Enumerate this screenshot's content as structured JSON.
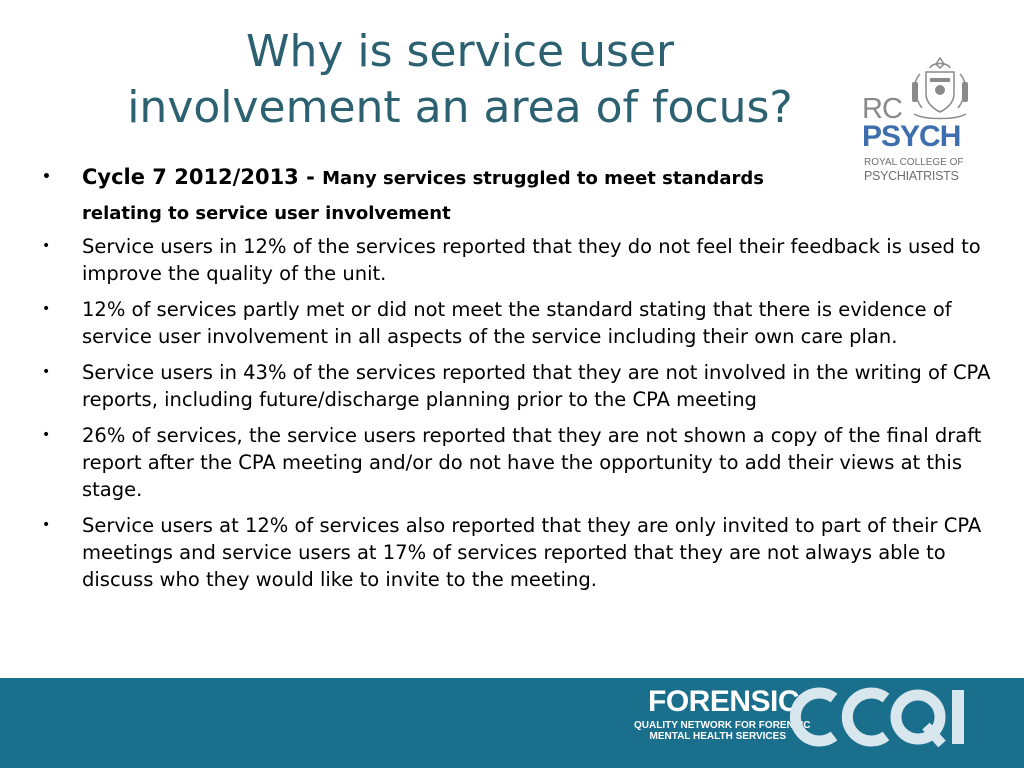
{
  "title": {
    "line1": "Why is service user",
    "line2": "involvement an area of focus?"
  },
  "logos": {
    "rcpsych": {
      "rc": "RC",
      "psych": "PSYCH",
      "line1": "ROYAL COLLEGE OF",
      "line2": "PSYCHIATRISTS"
    },
    "footer": {
      "forensic": "FORENSIC",
      "line1": "QUALITY NETWORK FOR FORENSIC",
      "line2": "MENTAL HEALTH SERVICES",
      "ccqi": "CCQI"
    }
  },
  "bullets": {
    "symbol": "•",
    "intro": {
      "cycle": "Cycle 7 2012/2013 - ",
      "text": "Many services struggled to meet standards relating to service user involvement"
    },
    "items": [
      "Service users in 12% of the services reported that they do not feel their feedback is used to improve the quality of the unit.",
      "12% of services partly met or did not meet the standard stating that there is evidence of service user involvement in all aspects of the service including their own care plan.",
      "Service users in 43% of the services reported that they are not involved in the writing of CPA reports, including future/discharge planning prior to the CPA meeting",
      "26% of services, the service users reported that they are not shown a copy of the final draft report after the CPA meeting and/or do not have the opportunity to add their views at this stage.",
      "Service users at 12% of services also reported that they are only invited to part of their CPA meetings and service users at 17% of services reported that they are not always able to discuss who they would like to invite to the meeting."
    ]
  },
  "colors": {
    "title": "#2b6170",
    "footer_band": "#1a6f8d",
    "psych_blue": "#3d6fae",
    "logo_grey": "#8a8a8a"
  }
}
